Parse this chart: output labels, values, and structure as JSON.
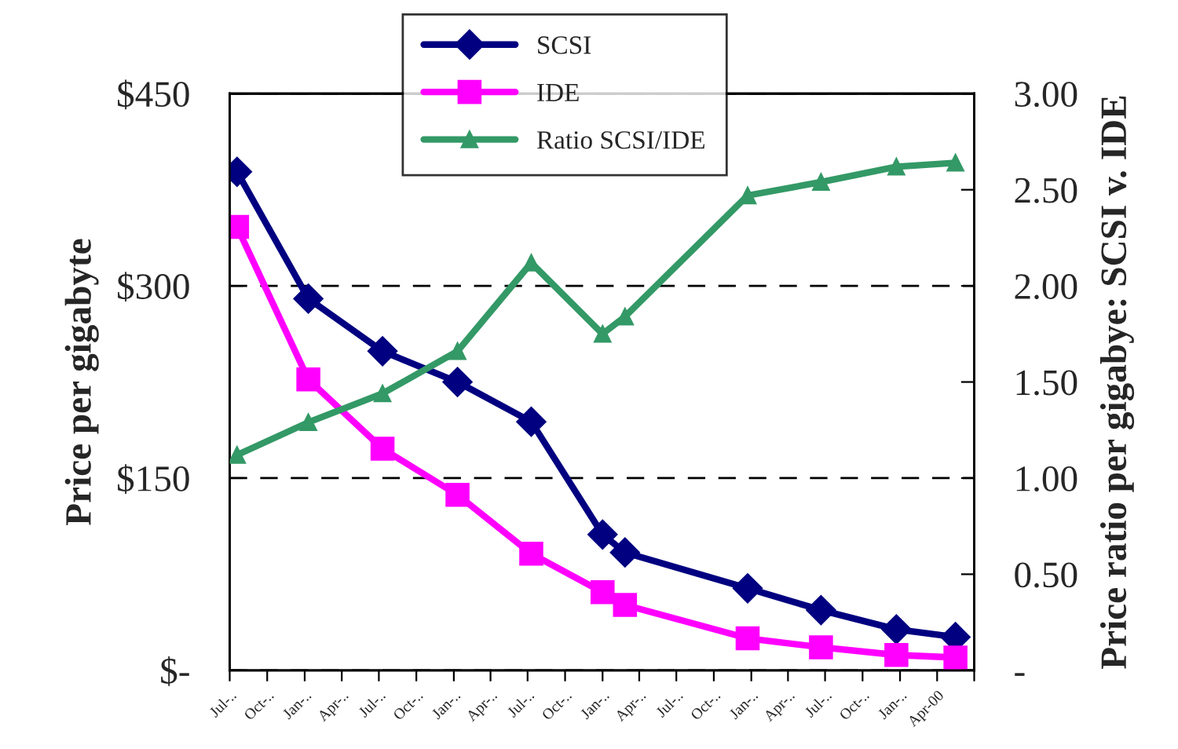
{
  "chart_data": {
    "type": "line",
    "ylabel": "Price per gigabyte",
    "y2label": "Price ratio per gigabye: SCSI v. IDE",
    "xlim": [
      "1995-07-01",
      "2000-07-01"
    ],
    "xticks": [
      {
        "value": "1995-07",
        "label": "Jul-.."
      },
      {
        "value": "1995-10",
        "label": "Oct-.."
      },
      {
        "value": "1996-01",
        "label": "Jan-.."
      },
      {
        "value": "1996-04",
        "label": "Apr-.."
      },
      {
        "value": "1996-07",
        "label": "Jul-.."
      },
      {
        "value": "1996-10",
        "label": "Oct-.."
      },
      {
        "value": "1997-01",
        "label": "Jan-.."
      },
      {
        "value": "1997-04",
        "label": "Apr-.."
      },
      {
        "value": "1997-07",
        "label": "Jul-.."
      },
      {
        "value": "1997-10",
        "label": "Oct-.."
      },
      {
        "value": "1998-01",
        "label": "Jan-.."
      },
      {
        "value": "1998-04",
        "label": "Apr-.."
      },
      {
        "value": "1998-07",
        "label": "Jul-.."
      },
      {
        "value": "1998-10",
        "label": "Oct-.."
      },
      {
        "value": "1999-01",
        "label": "Jan-.."
      },
      {
        "value": "1999-04",
        "label": "Apr-.."
      },
      {
        "value": "1999-07",
        "label": "Jul-.."
      },
      {
        "value": "1999-10",
        "label": "Oct-.."
      },
      {
        "value": "2000-01",
        "label": "Jan-.."
      },
      {
        "value": "2000-04",
        "label": "Apr-00"
      },
      {
        "value": "2000-07",
        "label": null
      }
    ],
    "ylim": [
      0,
      450
    ],
    "yticks": [
      {
        "value": 0,
        "label": "$-"
      },
      {
        "value": 150,
        "label": "$150"
      },
      {
        "value": 300,
        "label": "$300"
      },
      {
        "value": 450,
        "label": "$450"
      }
    ],
    "y2lim": [
      0,
      3
    ],
    "y2ticks": [
      {
        "value": 0,
        "label": "-"
      },
      {
        "value": 0.5,
        "label": "0.50"
      },
      {
        "value": 1,
        "label": "1.00"
      },
      {
        "value": 1.5,
        "label": "1.50"
      },
      {
        "value": 2,
        "label": "2.00"
      },
      {
        "value": 2.5,
        "label": "2.50"
      },
      {
        "value": 3,
        "label": "3.00"
      }
    ],
    "grid": "y",
    "legend": "top",
    "line_style": "solid",
    "x": [
      "1995-07-19",
      "1996-01-10",
      "1996-07-10",
      "1997-01-10",
      "1997-07-10",
      "1998-01-01",
      "1998-02-25",
      "1998-12-23",
      "1999-06-21",
      "1999-12-23",
      "2000-05-16"
    ],
    "series": [
      {
        "name": "SCSI",
        "color": "#000080",
        "marker": "diamond",
        "values": [
          389,
          290,
          249,
          225,
          194,
          106,
          92,
          64,
          47,
          32,
          26
        ]
      },
      {
        "name": "IDE",
        "color": "#ff00ff",
        "marker": "square",
        "values": [
          346,
          227,
          173,
          137,
          91,
          61,
          51,
          25,
          18,
          12,
          10
        ]
      },
      {
        "name": "Ratio SCSI/IDE",
        "color": "#339966",
        "marker": "triangle",
        "axis": "y2",
        "values": [
          1.12,
          1.29,
          1.44,
          1.66,
          2.12,
          1.75,
          1.84,
          2.47,
          2.54,
          2.62,
          2.64
        ]
      }
    ]
  }
}
